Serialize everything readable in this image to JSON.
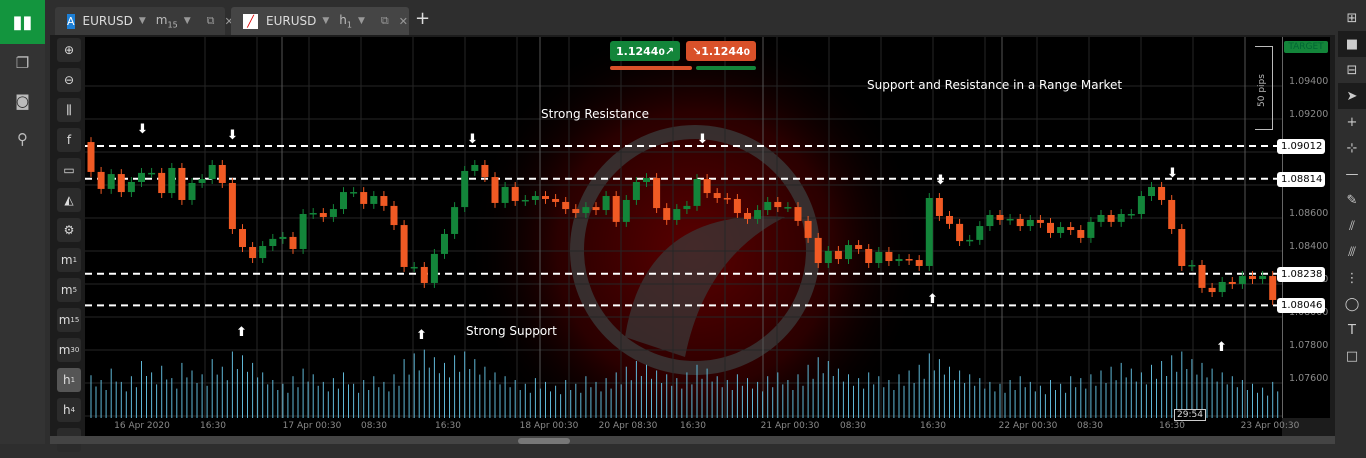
{
  "app": {
    "home_icon": "candlestick-chart-icon",
    "side_icons": [
      "copy-icon",
      "robot-icon",
      "analyze-icon"
    ]
  },
  "tabs": [
    {
      "symbol": "EURUSD",
      "timeframe": "m",
      "timeframe_sub": "15",
      "icon_letter": "A",
      "active": false
    },
    {
      "symbol": "EURUSD",
      "timeframe": "h",
      "timeframe_sub": "1",
      "active": true
    }
  ],
  "new_tab": "+",
  "left_tools": [
    {
      "name": "zoom-in-icon",
      "glyph": "⊕"
    },
    {
      "name": "zoom-out-icon",
      "glyph": "⊖"
    },
    {
      "name": "chart-type-icon",
      "glyph": "⫼"
    },
    {
      "name": "facebook-icon",
      "glyph": "f"
    },
    {
      "name": "robot-icon",
      "glyph": "▭"
    },
    {
      "name": "template-icon",
      "glyph": "◭"
    },
    {
      "name": "chart-settings-icon",
      "glyph": "⚙"
    }
  ],
  "timeframes": [
    {
      "l": "m",
      "s": "1"
    },
    {
      "l": "m",
      "s": "5"
    },
    {
      "l": "m",
      "s": "15"
    },
    {
      "l": "m",
      "s": "30"
    },
    {
      "l": "h",
      "s": "1",
      "sel": true
    },
    {
      "l": "h",
      "s": "4"
    }
  ],
  "more_label": "•••",
  "trade": {
    "sell_price": "1.1244",
    "sell_pip": "0",
    "buy_price": "1.1244",
    "buy_pip": "0",
    "sell_color": "#13853a",
    "buy_color": "#d9512a"
  },
  "annotations": {
    "title": "Support and Resistance in a Range Market",
    "resistance": "Strong Resistance",
    "support": "Strong Support"
  },
  "target_label": "TARGET",
  "pips_label": "50 pips",
  "countdown": "29:54",
  "right_tools": [
    "layout-icon",
    "single-layout-icon",
    "split-layout-icon",
    "cursor-icon",
    "crosshair-icon",
    "crosshair-box-icon",
    "horizontal-line-icon",
    "pencil-icon",
    "fibonacci-icon",
    "parallel-lines-icon",
    "grid-f-icon",
    "ellipse-icon",
    "text-icon",
    "rectangle-icon"
  ],
  "colors": {
    "bull": "#13853a",
    "bear": "#f05a24",
    "volume": "#5fb7d6",
    "target_line": "#13853a"
  },
  "chart_data": {
    "type": "candlestick",
    "symbol": "EURUSD",
    "timeframe": "h1",
    "ylim": [
      1.0768,
      1.0967
    ],
    "first_open": 1.09036,
    "closes": [
      1.08855,
      1.08752,
      1.08842,
      1.08733,
      1.08794,
      1.08849,
      1.08849,
      1.08727,
      1.08879,
      1.08685,
      1.08788,
      1.08812,
      1.08897,
      1.08788,
      1.08509,
      1.084,
      1.08333,
      1.08406,
      1.08449,
      1.08461,
      1.08388,
      1.086,
      1.08606,
      1.08582,
      1.0863,
      1.08733,
      1.08733,
      1.08661,
      1.08709,
      1.08649,
      1.08533,
      1.08279,
      1.08279,
      1.08182,
      1.08358,
      1.08479,
      1.08642,
      1.08861,
      1.08897,
      1.08824,
      1.08667,
      1.08764,
      1.08679,
      1.08685,
      1.08709,
      1.08691,
      1.08673,
      1.0863,
      1.08606,
      1.08642,
      1.08624,
      1.08709,
      1.08552,
      1.08685,
      1.08794,
      1.08818,
      1.08636,
      1.08564,
      1.0863,
      1.08649,
      1.08812,
      1.08727,
      1.08697,
      1.08691,
      1.08606,
      1.0857,
      1.08624,
      1.08673,
      1.08642,
      1.08642,
      1.08558,
      1.08455,
      1.08303,
      1.08376,
      1.08327,
      1.08412,
      1.08388,
      1.08303,
      1.0837,
      1.08315,
      1.08327,
      1.08321,
      1.08285,
      1.08697,
      1.08588,
      1.0854,
      1.08436,
      1.08443,
      1.08527,
      1.08594,
      1.08564,
      1.0857,
      1.08527,
      1.08564,
      1.08546,
      1.08485,
      1.08521,
      1.08503,
      1.08455,
      1.08552,
      1.08594,
      1.08552,
      1.086,
      1.086,
      1.08709,
      1.08764,
      1.08685,
      1.08509,
      1.08285,
      1.08291,
      1.08152,
      1.08127,
      1.08188,
      1.08176,
      1.08224,
      1.08206,
      1.08224,
      1.08079
    ],
    "volume": [
      45,
      40,
      52,
      38,
      44,
      60,
      48,
      55,
      42,
      58,
      50,
      46,
      62,
      54,
      70,
      66,
      58,
      48,
      40,
      36,
      44,
      52,
      46,
      38,
      42,
      48,
      36,
      40,
      44,
      38,
      46,
      62,
      68,
      72,
      64,
      58,
      66,
      70,
      62,
      54,
      48,
      44,
      40,
      36,
      42,
      38,
      34,
      40,
      36,
      44,
      38,
      42,
      48,
      54,
      60,
      56,
      50,
      46,
      42,
      48,
      56,
      52,
      44,
      40,
      46,
      42,
      38,
      44,
      48,
      40,
      46,
      56,
      64,
      60,
      52,
      46,
      42,
      48,
      44,
      40,
      46,
      50,
      56,
      68,
      62,
      54,
      50,
      46,
      42,
      38,
      36,
      40,
      44,
      38,
      34,
      40,
      36,
      44,
      42,
      46,
      50,
      54,
      58,
      52,
      48,
      56,
      60,
      66,
      70,
      62,
      58,
      52,
      48,
      44,
      40,
      36,
      32,
      38
    ],
    "price_ticks": [
      "1.0940",
      "1.0920",
      "1.0860",
      "1.0840",
      "1.0820",
      "1.0800",
      "1.0780",
      "1.0760"
    ],
    "price_tick_sub": "0",
    "levels": [
      "1.09012",
      "1.08814",
      "1.08238",
      "1.08046"
    ],
    "time_ticks": [
      "16 Apr 2020",
      "16:30",
      "17 Apr 00:30",
      "08:30",
      "16:30",
      "18 Apr 00:30",
      "20 Apr 08:30",
      "16:30",
      "21 Apr 00:30",
      "08:30",
      "16:30",
      "22 Apr 00:30",
      "08:30",
      "16:30",
      "23 Apr 00:30"
    ],
    "target_line": [
      1.0969,
      1.0978
    ],
    "arrows_down": [
      1.0911,
      1.0907,
      1.0905,
      1.0905,
      1.088,
      1.0884
    ],
    "arrows_up": [
      1.0788,
      1.0786,
      1.0808,
      1.0779
    ]
  }
}
